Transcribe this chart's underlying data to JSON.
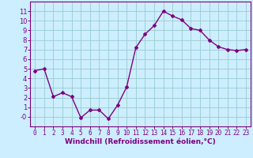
{
  "x": [
    0,
    1,
    2,
    3,
    4,
    5,
    6,
    7,
    8,
    9,
    10,
    11,
    12,
    13,
    14,
    15,
    16,
    17,
    18,
    19,
    20,
    21,
    22,
    23
  ],
  "y": [
    4.8,
    5.0,
    2.1,
    2.5,
    2.1,
    -0.1,
    0.7,
    0.7,
    -0.2,
    1.2,
    3.1,
    7.2,
    8.6,
    9.5,
    11.0,
    10.5,
    10.1,
    9.2,
    9.0,
    8.0,
    7.3,
    7.0,
    6.9,
    7.0
  ],
  "line_color": "#800080",
  "marker": "D",
  "marker_size": 2,
  "linewidth": 1.0,
  "xlabel": "Windchill (Refroidissement éolien,°C)",
  "xlabel_fontsize": 6.5,
  "bg_color": "#cceeff",
  "grid_color": "#99cccc",
  "tick_color": "#800080",
  "label_color": "#800080",
  "ylim": [
    -1,
    12
  ],
  "xlim": [
    -0.5,
    23.5
  ],
  "yticks": [
    0,
    1,
    2,
    3,
    4,
    5,
    6,
    7,
    8,
    9,
    10,
    11
  ],
  "xticks": [
    0,
    1,
    2,
    3,
    4,
    5,
    6,
    7,
    8,
    9,
    10,
    11,
    12,
    13,
    14,
    15,
    16,
    17,
    18,
    19,
    20,
    21,
    22,
    23
  ],
  "tick_fontsize": 5.5,
  "xlabel_fontweight": "bold"
}
